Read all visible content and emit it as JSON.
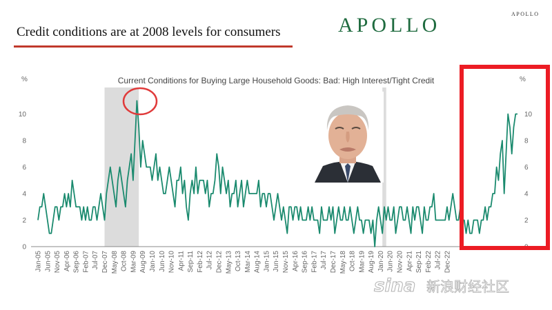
{
  "slide": {
    "title": "Credit conditions are at 2008 levels for consumers",
    "logo_big": "APOLLO",
    "logo_small": "APOLLO"
  },
  "watermark": {
    "brand": "sina",
    "chinese": "新浪财经社区"
  },
  "chart_data": {
    "type": "line",
    "title": "Current Conditions for Buying Large Household Goods: Bad: High Interest/Tight Credit",
    "ylabel_left": "%",
    "ylabel_right": "%",
    "ylim": [
      0,
      12
    ],
    "yticks": [
      0,
      2,
      4,
      6,
      8,
      10
    ],
    "start": "2005-01",
    "x_tick_labels": [
      "Jan-05",
      "Jun-05",
      "Nov-05",
      "Apr-06",
      "Sep-06",
      "Feb-07",
      "Jul-07",
      "Dec-07",
      "May-08",
      "Oct-08",
      "Mar-09",
      "Aug-09",
      "Jan-10",
      "Jun-10",
      "Nov-10",
      "Apr-11",
      "Sep-11",
      "Feb-12",
      "Jul-12",
      "Dec-12",
      "May-13",
      "Oct-13",
      "Mar-14",
      "Aug-14",
      "Jan-15",
      "Jun-15",
      "Nov-15",
      "Apr-16",
      "Sep-16",
      "Feb-17",
      "Jul-17",
      "Dec-17",
      "May-18",
      "Oct-18",
      "Mar-19",
      "Aug-19",
      "Jan-20",
      "Jun-20",
      "Nov-20",
      "Apr-21",
      "Sep-21",
      "Feb-22",
      "Jul-22",
      "Dec-22"
    ],
    "recessions": [
      {
        "start": "2007-12",
        "end": "2009-06"
      },
      {
        "start": "2020-02",
        "end": "2020-04"
      }
    ],
    "series": [
      {
        "color": "#1a8a6e",
        "values": [
          2,
          3,
          3,
          4,
          3,
          2,
          1,
          1,
          2,
          3,
          3,
          2,
          3,
          3,
          4,
          3,
          4,
          3,
          5,
          4,
          3,
          3,
          3,
          2,
          3,
          2,
          3,
          2,
          2,
          3,
          3,
          2,
          3,
          4,
          3,
          2,
          4,
          5,
          6,
          5,
          4,
          3,
          5,
          6,
          5,
          4,
          3,
          5,
          6,
          7,
          5,
          8,
          11,
          9,
          6,
          8,
          7,
          6,
          6,
          6,
          5,
          6,
          7,
          5,
          6,
          5,
          4,
          4,
          5,
          6,
          5,
          4,
          3,
          5,
          5,
          6,
          4,
          5,
          3,
          2,
          4,
          5,
          4,
          6,
          4,
          5,
          5,
          5,
          4,
          5,
          3,
          4,
          4,
          5,
          7,
          6,
          4,
          6,
          5,
          4,
          5,
          3,
          4,
          4,
          5,
          3,
          4,
          5,
          3,
          4,
          5,
          4,
          4,
          4,
          4,
          4,
          5,
          3,
          4,
          4,
          3,
          4,
          4,
          3,
          2,
          3,
          4,
          3,
          2,
          3,
          2,
          1,
          3,
          3,
          2,
          3,
          3,
          2,
          3,
          2,
          2,
          2,
          3,
          2,
          3,
          2,
          2,
          2,
          1,
          3,
          2,
          2,
          2,
          3,
          2,
          3,
          1,
          2,
          3,
          2,
          2,
          3,
          2,
          2,
          3,
          2,
          1,
          2,
          3,
          2,
          2,
          1,
          2,
          2,
          2,
          1,
          2,
          0,
          2,
          3,
          2,
          1,
          3,
          2,
          3,
          2,
          2,
          3,
          1,
          2,
          3,
          3,
          2,
          2,
          3,
          2,
          1,
          3,
          2,
          3,
          3,
          2,
          1,
          3,
          2,
          2,
          3,
          3,
          4,
          2,
          2,
          2,
          2,
          2,
          2,
          3,
          2,
          3,
          4,
          3,
          2,
          2,
          3,
          2,
          2,
          1,
          2,
          1,
          1,
          2,
          2,
          2,
          1,
          2,
          2,
          3,
          2,
          3,
          3,
          4,
          4,
          6,
          5,
          7,
          8,
          4,
          7,
          10,
          9,
          7,
          9,
          10,
          10
        ]
      }
    ]
  }
}
